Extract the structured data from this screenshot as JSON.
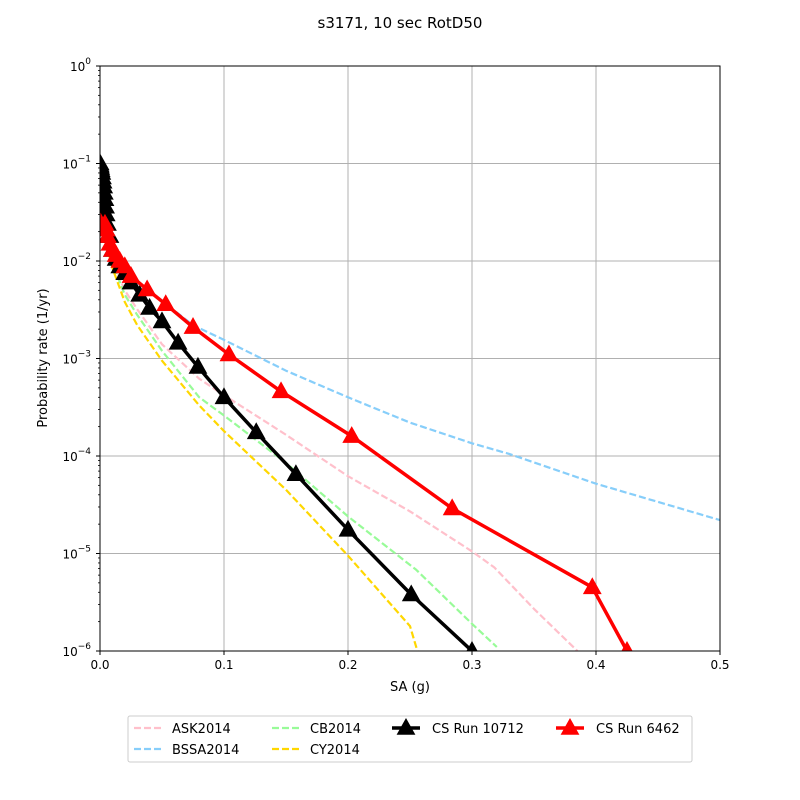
{
  "chart_data": {
    "type": "line",
    "title": "s3171, 10 sec RotD50",
    "xlabel": "SA (g)",
    "ylabel": "Probability rate (1/yr)",
    "xlim": [
      0,
      0.5
    ],
    "ylim": [
      1e-06,
      1
    ],
    "yscale": "log",
    "grid": true,
    "legend_position": "bottom",
    "x_ticks": [
      {
        "value": 0,
        "label": "0.0"
      },
      {
        "value": 0.1,
        "label": "0.1"
      },
      {
        "value": 0.2,
        "label": "0.2"
      },
      {
        "value": 0.3,
        "label": "0.3"
      },
      {
        "value": 0.4,
        "label": "0.4"
      },
      {
        "value": 0.5,
        "label": "0.5"
      }
    ],
    "y_ticks": [
      {
        "value": 1e-06,
        "base": "10",
        "exp": "−6"
      },
      {
        "value": 1e-05,
        "base": "10",
        "exp": "−5"
      },
      {
        "value": 0.0001,
        "base": "10",
        "exp": "−4"
      },
      {
        "value": 0.001,
        "base": "10",
        "exp": "−3"
      },
      {
        "value": 0.01,
        "base": "10",
        "exp": "−2"
      },
      {
        "value": 0.1,
        "base": "10",
        "exp": "−1"
      },
      {
        "value": 1,
        "base": "10",
        "exp": "0"
      }
    ],
    "series": [
      {
        "name": "ASK2014",
        "color": "#ffc0cb",
        "style": "dashed",
        "x": [
          0.005,
          0.01,
          0.02,
          0.03,
          0.05,
          0.08,
          0.1,
          0.15,
          0.2,
          0.25,
          0.3,
          0.318,
          0.35,
          0.385
        ],
        "y": [
          0.018,
          0.01,
          0.005,
          0.0032,
          0.0014,
          0.00062,
          0.00042,
          0.000165,
          6.2e-05,
          2.7e-05,
          1.05e-05,
          7.2e-06,
          2.7e-06,
          1e-06
        ]
      },
      {
        "name": "BSSA2014",
        "color": "#87cefa",
        "style": "dashed",
        "x": [
          0.005,
          0.01,
          0.02,
          0.03,
          0.05,
          0.075,
          0.1,
          0.15,
          0.2,
          0.25,
          0.3,
          0.33,
          0.4,
          0.5
        ],
        "y": [
          0.02,
          0.012,
          0.0078,
          0.006,
          0.0039,
          0.0022,
          0.00155,
          0.00075,
          0.0004,
          0.00022,
          0.000135,
          0.000105,
          5.2e-05,
          2.2e-05
        ]
      },
      {
        "name": "CB2014",
        "color": "#98fb98",
        "style": "dashed",
        "x": [
          0.005,
          0.01,
          0.02,
          0.03,
          0.05,
          0.08,
          0.1,
          0.15,
          0.2,
          0.255,
          0.3,
          0.32
        ],
        "y": [
          0.017,
          0.0095,
          0.0045,
          0.0028,
          0.0012,
          0.0004,
          0.00026,
          8.5e-05,
          2.4e-05,
          6.8e-06,
          1.9e-06,
          1.1e-06
        ]
      },
      {
        "name": "CY2014",
        "color": "#ffd700",
        "style": "dashed",
        "x": [
          0.005,
          0.01,
          0.02,
          0.03,
          0.05,
          0.08,
          0.1,
          0.15,
          0.2,
          0.25,
          0.256
        ],
        "y": [
          0.015,
          0.0085,
          0.0038,
          0.0022,
          0.00095,
          0.00033,
          0.00018,
          4.5e-05,
          9.5e-06,
          1.8e-06,
          1e-06
        ]
      },
      {
        "name": "CS Run 10712",
        "color": "#000000",
        "style": "solid",
        "marker": "triangle",
        "x": [
          0.0001,
          0.0003,
          0.0006,
          0.001,
          0.0015,
          0.002,
          0.0025,
          0.003,
          0.0035,
          0.004,
          0.0045,
          0.005,
          0.006,
          0.008,
          0.01,
          0.013,
          0.016,
          0.02,
          0.025,
          0.032,
          0.04,
          0.05,
          0.063,
          0.079,
          0.1,
          0.126,
          0.158,
          0.2,
          0.251,
          0.3
        ],
        "y": [
          0.1,
          0.095,
          0.09,
          0.085,
          0.08,
          0.072,
          0.065,
          0.058,
          0.05,
          0.043,
          0.036,
          0.03,
          0.024,
          0.018,
          0.013,
          0.0105,
          0.0088,
          0.0075,
          0.006,
          0.0045,
          0.0033,
          0.0024,
          0.00145,
          0.00082,
          0.0004,
          0.000175,
          6.5e-05,
          1.75e-05,
          3.8e-06,
          1e-06
        ]
      },
      {
        "name": "CS Run 6462",
        "color": "#ff0000",
        "style": "solid",
        "marker": "triangle",
        "x": [
          0.0002,
          0.004,
          0.005,
          0.006,
          0.008,
          0.01,
          0.013,
          0.016,
          0.02,
          0.025,
          0.038,
          0.053,
          0.075,
          0.104,
          0.146,
          0.203,
          0.284,
          0.397,
          0.425
        ],
        "y": [
          0.025,
          0.024,
          0.021,
          0.018,
          0.015,
          0.013,
          0.0115,
          0.01,
          0.0088,
          0.007,
          0.0051,
          0.0036,
          0.0021,
          0.0011,
          0.00046,
          0.00016,
          2.9e-05,
          4.5e-06,
          1e-06
        ]
      }
    ]
  }
}
